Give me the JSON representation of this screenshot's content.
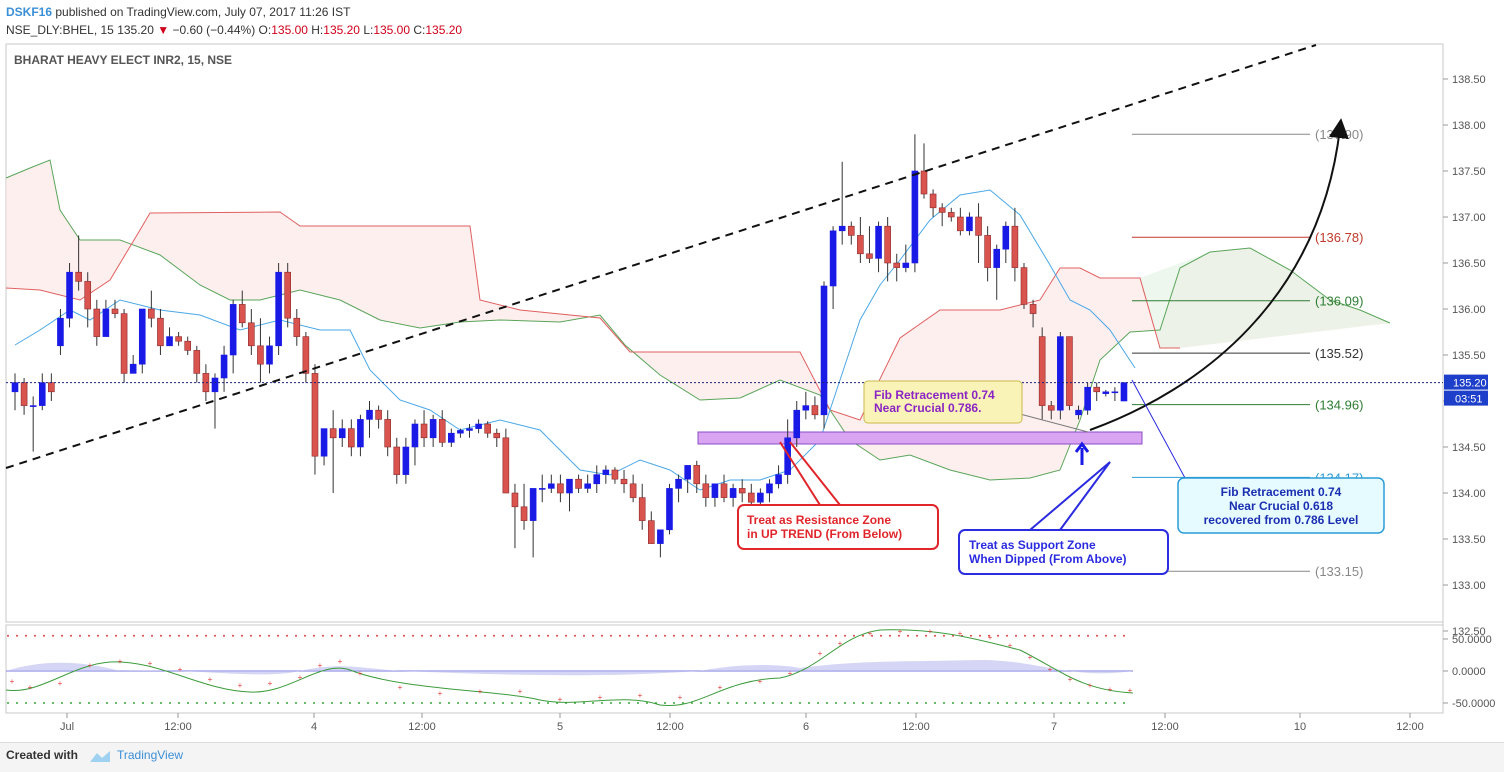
{
  "header": {
    "publisher": "DSKF16",
    "published_text": "published on TradingView.com, July 07, 2017 11:26 IST",
    "symbol": "NSE_DLY:BHEL, 15",
    "last": "135.20",
    "change": "−0.60 (−0.44%)",
    "open_label": "O:",
    "open": "135.00",
    "high_label": "H:",
    "high": "135.20",
    "low_label": "L:",
    "low": "135.00",
    "close_label": "C:",
    "close": "135.20"
  },
  "chart_data": {
    "type": "candlestick",
    "title": "BHARAT HEAVY ELECT INR2, 15, NSE",
    "ylim": [
      132.3,
      138.7
    ],
    "yticks": [
      "138.50",
      "138.00",
      "137.50",
      "137.00",
      "136.50",
      "136.00",
      "135.50",
      "135.00",
      "134.50",
      "134.00",
      "133.50",
      "133.00",
      "132.50"
    ],
    "xticks": [
      "Jul",
      "12:00",
      "4",
      "12:00",
      "5",
      "12:00",
      "6",
      "12:00",
      "7",
      "12:00",
      "10",
      "12:00"
    ],
    "price_label": "135.20",
    "countdown_label": "03:51",
    "candles": [
      [
        135.1,
        135.3,
        134.9,
        135.2
      ],
      [
        135.2,
        135.25,
        134.85,
        134.95
      ],
      [
        134.95,
        135.05,
        134.45,
        134.95
      ],
      [
        134.95,
        135.3,
        134.9,
        135.2
      ],
      [
        135.2,
        135.3,
        135.0,
        135.1
      ],
      [
        135.6,
        136.0,
        135.5,
        135.9
      ],
      [
        135.9,
        136.5,
        135.8,
        136.4
      ],
      [
        136.4,
        136.8,
        136.2,
        136.3
      ],
      [
        136.3,
        136.4,
        135.8,
        136.0
      ],
      [
        136.0,
        136.1,
        135.6,
        135.7
      ],
      [
        135.7,
        136.1,
        135.7,
        136.0
      ],
      [
        136.0,
        136.1,
        135.9,
        135.95
      ],
      [
        135.95,
        136.0,
        135.2,
        135.3
      ],
      [
        135.3,
        135.5,
        135.3,
        135.4
      ],
      [
        135.4,
        136.0,
        135.3,
        136.0
      ],
      [
        136.0,
        136.2,
        135.8,
        135.9
      ],
      [
        135.9,
        136.0,
        135.5,
        135.6
      ],
      [
        135.6,
        135.8,
        135.6,
        135.7
      ],
      [
        135.7,
        135.75,
        135.6,
        135.65
      ],
      [
        135.65,
        135.7,
        135.5,
        135.55
      ],
      [
        135.55,
        135.6,
        135.2,
        135.3
      ],
      [
        135.3,
        135.4,
        135.0,
        135.1
      ],
      [
        135.1,
        135.3,
        134.7,
        135.25
      ],
      [
        135.25,
        135.6,
        135.1,
        135.5
      ],
      [
        135.5,
        136.1,
        135.3,
        136.05
      ],
      [
        136.05,
        136.2,
        135.8,
        135.85
      ],
      [
        135.85,
        136.0,
        135.5,
        135.6
      ],
      [
        135.6,
        135.9,
        135.2,
        135.4
      ],
      [
        135.4,
        135.7,
        135.3,
        135.6
      ],
      [
        135.6,
        136.5,
        135.5,
        136.4
      ],
      [
        136.4,
        136.5,
        135.8,
        135.9
      ],
      [
        135.9,
        136.0,
        135.6,
        135.7
      ],
      [
        135.7,
        135.75,
        135.2,
        135.3
      ],
      [
        135.3,
        135.4,
        134.2,
        134.4
      ],
      [
        134.4,
        134.7,
        134.3,
        134.7
      ],
      [
        134.7,
        134.9,
        134.0,
        134.6
      ],
      [
        134.6,
        134.8,
        134.5,
        134.7
      ],
      [
        134.7,
        134.8,
        134.4,
        134.5
      ],
      [
        134.5,
        134.85,
        134.4,
        134.8
      ],
      [
        134.8,
        135.0,
        134.6,
        134.9
      ],
      [
        134.9,
        134.95,
        134.7,
        134.8
      ],
      [
        134.8,
        134.9,
        134.4,
        134.5
      ],
      [
        134.5,
        134.6,
        134.1,
        134.2
      ],
      [
        134.2,
        134.6,
        134.1,
        134.5
      ],
      [
        134.5,
        134.8,
        134.3,
        134.75
      ],
      [
        134.75,
        134.9,
        134.5,
        134.6
      ],
      [
        134.6,
        134.85,
        134.5,
        134.8
      ],
      [
        134.8,
        134.9,
        134.5,
        134.55
      ],
      [
        134.55,
        134.7,
        134.5,
        134.65
      ],
      [
        134.65,
        134.7,
        134.6,
        134.68
      ],
      [
        134.68,
        134.75,
        134.6,
        134.7
      ],
      [
        134.7,
        134.8,
        134.65,
        134.75
      ],
      [
        134.75,
        134.78,
        134.6,
        134.65
      ],
      [
        134.65,
        134.7,
        134.5,
        134.6
      ],
      [
        134.6,
        134.7,
        134.0,
        134.0
      ],
      [
        134.0,
        134.1,
        133.4,
        133.85
      ],
      [
        133.85,
        134.1,
        133.6,
        133.7
      ],
      [
        133.7,
        134.05,
        133.3,
        134.05
      ],
      [
        134.05,
        134.2,
        133.9,
        134.05
      ],
      [
        134.05,
        134.2,
        134.0,
        134.1
      ],
      [
        134.1,
        134.2,
        133.9,
        134.0
      ],
      [
        134.0,
        134.15,
        133.8,
        134.15
      ],
      [
        134.15,
        134.2,
        134.0,
        134.05
      ],
      [
        134.05,
        134.2,
        134.0,
        134.1
      ],
      [
        134.1,
        134.3,
        134.0,
        134.2
      ],
      [
        134.2,
        134.3,
        134.1,
        134.25
      ],
      [
        134.25,
        134.28,
        134.1,
        134.15
      ],
      [
        134.15,
        134.25,
        134.0,
        134.1
      ],
      [
        134.1,
        134.2,
        133.9,
        133.95
      ],
      [
        133.95,
        134.1,
        133.6,
        133.7
      ],
      [
        133.7,
        133.8,
        133.45,
        133.45
      ],
      [
        133.45,
        133.6,
        133.3,
        133.6
      ],
      [
        133.6,
        134.1,
        133.55,
        134.05
      ],
      [
        134.05,
        134.2,
        133.9,
        134.15
      ],
      [
        134.15,
        134.3,
        134.0,
        134.3
      ],
      [
        134.3,
        134.35,
        134.0,
        134.1
      ],
      [
        134.1,
        134.2,
        133.85,
        133.95
      ],
      [
        133.95,
        134.1,
        133.85,
        134.1
      ],
      [
        134.1,
        134.2,
        133.9,
        133.95
      ],
      [
        133.95,
        134.1,
        133.85,
        134.05
      ],
      [
        134.05,
        134.15,
        133.9,
        134.0
      ],
      [
        134.0,
        134.1,
        133.85,
        133.9
      ],
      [
        133.9,
        134.05,
        133.85,
        134.0
      ],
      [
        134.0,
        134.15,
        133.9,
        134.1
      ],
      [
        134.1,
        134.3,
        134.05,
        134.2
      ],
      [
        134.2,
        134.8,
        134.1,
        134.6
      ],
      [
        134.6,
        135.0,
        134.5,
        134.9
      ],
      [
        134.9,
        135.1,
        134.8,
        134.95
      ],
      [
        134.95,
        135.05,
        134.8,
        134.85
      ],
      [
        134.85,
        136.3,
        134.7,
        136.25
      ],
      [
        136.25,
        136.9,
        136.0,
        136.85
      ],
      [
        136.85,
        137.6,
        136.7,
        136.9
      ],
      [
        136.9,
        136.95,
        136.7,
        136.8
      ],
      [
        136.8,
        137.0,
        136.5,
        136.6
      ],
      [
        136.6,
        136.9,
        136.5,
        136.55
      ],
      [
        136.55,
        136.95,
        136.4,
        136.9
      ],
      [
        136.9,
        137.0,
        136.3,
        136.5
      ],
      [
        136.5,
        136.6,
        136.3,
        136.45
      ],
      [
        136.45,
        136.7,
        136.4,
        136.5
      ],
      [
        136.5,
        137.9,
        136.4,
        137.5
      ],
      [
        137.5,
        137.8,
        137.2,
        137.25
      ],
      [
        137.25,
        137.3,
        137.0,
        137.1
      ],
      [
        137.1,
        137.15,
        136.9,
        137.05
      ],
      [
        137.05,
        137.1,
        136.95,
        137.0
      ],
      [
        137.0,
        137.1,
        136.8,
        136.85
      ],
      [
        136.85,
        137.05,
        136.8,
        137.0
      ],
      [
        137.0,
        137.15,
        136.5,
        136.8
      ],
      [
        136.8,
        136.9,
        136.3,
        136.45
      ],
      [
        136.45,
        136.7,
        136.1,
        136.65
      ],
      [
        136.65,
        136.95,
        136.5,
        136.9
      ],
      [
        136.9,
        137.1,
        136.3,
        136.45
      ],
      [
        136.45,
        136.5,
        136.0,
        136.05
      ],
      [
        136.05,
        136.1,
        135.8,
        135.95
      ],
      [
        135.7,
        135.8,
        134.8,
        134.95
      ],
      [
        134.95,
        135.0,
        134.8,
        134.9
      ],
      [
        134.9,
        135.75,
        134.8,
        135.7
      ],
      [
        135.7,
        135.7,
        134.9,
        134.95
      ],
      [
        134.85,
        134.95,
        134.8,
        134.9
      ],
      [
        134.9,
        135.2,
        134.85,
        135.15
      ],
      [
        135.15,
        135.2,
        135.0,
        135.1
      ],
      [
        135.08,
        135.12,
        135.05,
        135.1
      ],
      [
        135.1,
        135.15,
        135.0,
        135.1
      ],
      [
        135.0,
        135.2,
        135.0,
        135.2
      ]
    ],
    "fib_levels": [
      {
        "value": 137.9,
        "label": "(137.90)",
        "color": "#888888"
      },
      {
        "value": 136.78,
        "label": "(136.78)",
        "color": "#c0392b"
      },
      {
        "value": 136.09,
        "label": "(136.09)",
        "color": "#2e7d32"
      },
      {
        "value": 135.52,
        "label": "(135.52)",
        "color": "#333333"
      },
      {
        "value": 134.96,
        "label": "(134.96)",
        "color": "#2e7d32"
      },
      {
        "value": 134.17,
        "label": "(134.17)",
        "color": "#2b9bd6"
      },
      {
        "value": 133.15,
        "label": "(133.15)",
        "color": "#888888"
      }
    ],
    "annotations": {
      "fib_note": [
        "Fib Retracement 0.74",
        "Near Crucial 0.786."
      ],
      "resistance_note": [
        "Treat as Resistance Zone",
        "in UP TREND (From Below)"
      ],
      "support_note": [
        "Treat as Support Zone",
        "When Dipped  (From Above)"
      ],
      "fib_note2": [
        "Fib Retracement 0.74",
        "Near Crucial 0.618",
        "recovered from 0.786 Level"
      ]
    },
    "oscillator": {
      "yticks": [
        "50.0000",
        "0.0000",
        "-50.0000"
      ],
      "ylim": [
        -60,
        70
      ]
    }
  },
  "footer": {
    "created_with": "Created with",
    "brand": "TradingView"
  }
}
